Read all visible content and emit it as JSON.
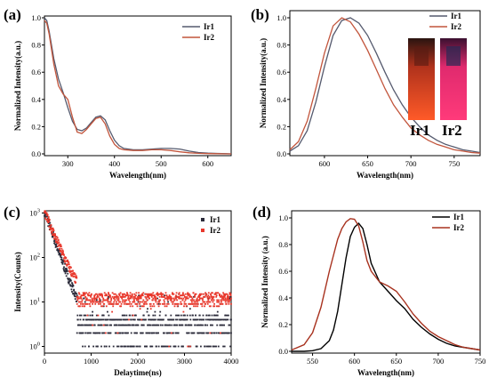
{
  "colors": {
    "ir1": "#555a6e",
    "ir2": "#c2553c",
    "ir1_d": "#000000",
    "ir2_d": "#a8321f",
    "red_scatter": "#e8382c",
    "dark_scatter": "#2b2b3a"
  },
  "chart_data": [
    {
      "panel": "(a)",
      "type": "line",
      "xlabel": "Wavelength(nm)",
      "ylabel": "Normalized Intensity(a.u.)",
      "xlim": [
        250,
        650
      ],
      "ylim": [
        0,
        1.0
      ],
      "xticks": [
        "300",
        "400",
        "500",
        "600"
      ],
      "yticks": [
        "0.0",
        "0.2",
        "0.4",
        "0.6",
        "0.8",
        "1.0"
      ],
      "series": [
        {
          "name": "Ir1",
          "x": [
            250,
            255,
            260,
            270,
            280,
            290,
            300,
            310,
            320,
            330,
            340,
            350,
            360,
            370,
            380,
            390,
            400,
            410,
            420,
            440,
            460,
            480,
            500,
            520,
            540,
            560,
            580,
            600,
            620,
            640,
            650
          ],
          "y": [
            1.0,
            0.98,
            0.9,
            0.7,
            0.55,
            0.45,
            0.34,
            0.24,
            0.18,
            0.17,
            0.19,
            0.23,
            0.27,
            0.28,
            0.25,
            0.17,
            0.1,
            0.06,
            0.04,
            0.03,
            0.03,
            0.035,
            0.04,
            0.04,
            0.035,
            0.02,
            0.01,
            0.005,
            0.003,
            0.001,
            0.0
          ]
        },
        {
          "name": "Ir2",
          "x": [
            250,
            255,
            260,
            270,
            280,
            290,
            300,
            310,
            320,
            330,
            340,
            350,
            360,
            370,
            380,
            390,
            400,
            410,
            420,
            440,
            460,
            480,
            500,
            520,
            540,
            560,
            580,
            600,
            620,
            640,
            650
          ],
          "y": [
            0.98,
            0.96,
            0.88,
            0.66,
            0.5,
            0.44,
            0.4,
            0.27,
            0.16,
            0.15,
            0.18,
            0.22,
            0.26,
            0.27,
            0.22,
            0.13,
            0.07,
            0.04,
            0.03,
            0.025,
            0.025,
            0.03,
            0.03,
            0.025,
            0.015,
            0.008,
            0.004,
            0.002,
            0.001,
            0.0,
            0.0
          ]
        }
      ]
    },
    {
      "panel": "(b)",
      "type": "line",
      "xlabel": "Wavelength(nm)",
      "ylabel": "Normalized Intensity(a.u.)",
      "xlim": [
        560,
        780
      ],
      "ylim": [
        0,
        1.0
      ],
      "xticks": [
        "600",
        "650",
        "700",
        "750"
      ],
      "yticks": [
        "0.0",
        "0.2",
        "0.4",
        "0.6",
        "0.8",
        "1.0"
      ],
      "series": [
        {
          "name": "Ir1",
          "x": [
            560,
            570,
            580,
            590,
            600,
            610,
            620,
            630,
            640,
            650,
            660,
            670,
            680,
            690,
            700,
            710,
            720,
            730,
            740,
            750,
            760,
            770,
            780
          ],
          "y": [
            0.02,
            0.06,
            0.17,
            0.38,
            0.64,
            0.87,
            0.98,
            1.0,
            0.96,
            0.87,
            0.74,
            0.6,
            0.47,
            0.36,
            0.27,
            0.2,
            0.14,
            0.1,
            0.07,
            0.05,
            0.03,
            0.02,
            0.01
          ]
        },
        {
          "name": "Ir2",
          "x": [
            560,
            570,
            580,
            590,
            600,
            610,
            620,
            630,
            640,
            650,
            660,
            670,
            680,
            690,
            700,
            710,
            720,
            730,
            740,
            750,
            760,
            770,
            780
          ],
          "y": [
            0.03,
            0.09,
            0.24,
            0.48,
            0.74,
            0.94,
            1.0,
            0.97,
            0.88,
            0.76,
            0.62,
            0.48,
            0.36,
            0.27,
            0.19,
            0.14,
            0.1,
            0.07,
            0.05,
            0.03,
            0.02,
            0.01,
            0.005
          ]
        }
      ],
      "photo_labels": [
        "Ir1",
        "Ir2"
      ]
    },
    {
      "panel": "(c)",
      "type": "scatter",
      "xlabel": "Delaytime(ns)",
      "ylabel": "Intensity(Counts)",
      "xlim": [
        0,
        4000
      ],
      "ylim_log10": [
        -0.15,
        3.05
      ],
      "scale": "log",
      "xticks": [
        "0",
        "1000",
        "2000",
        "3000",
        "4000"
      ],
      "yticks": [
        "10^0",
        "10^1",
        "10^2",
        "10^3"
      ],
      "series": [
        {
          "name": "Ir1",
          "decay_tau_ns": 145,
          "initial_counts": 1100,
          "floor_counts": 3
        },
        {
          "name": "Ir2",
          "decay_tau_ns": 175,
          "initial_counts": 1050,
          "floor_counts": 9
        }
      ]
    },
    {
      "panel": "(d)",
      "type": "line",
      "xlabel": "Wavelength(nm)",
      "ylabel": "Normalized Intensity (a.u.)",
      "xlim": [
        525,
        750
      ],
      "ylim": [
        0,
        1.0
      ],
      "xticks": [
        "550",
        "600",
        "650",
        "700",
        "750"
      ],
      "yticks": [
        "0.0",
        "0.2",
        "0.4",
        "0.6",
        "0.8",
        "1.0"
      ],
      "series": [
        {
          "name": "Ir1",
          "x": [
            525,
            540,
            550,
            560,
            570,
            575,
            580,
            585,
            590,
            595,
            600,
            605,
            610,
            615,
            620,
            630,
            640,
            650,
            660,
            670,
            680,
            690,
            700,
            710,
            720,
            730,
            740,
            750
          ],
          "y": [
            0.0,
            0.0,
            0.005,
            0.02,
            0.08,
            0.16,
            0.3,
            0.5,
            0.7,
            0.86,
            0.93,
            0.96,
            0.92,
            0.8,
            0.66,
            0.52,
            0.45,
            0.38,
            0.32,
            0.24,
            0.18,
            0.13,
            0.09,
            0.06,
            0.04,
            0.03,
            0.02,
            0.01
          ]
        },
        {
          "name": "Ir2",
          "x": [
            525,
            540,
            550,
            560,
            570,
            575,
            580,
            585,
            590,
            595,
            600,
            605,
            610,
            615,
            620,
            630,
            640,
            650,
            660,
            670,
            680,
            690,
            700,
            710,
            720,
            730,
            740,
            750
          ],
          "y": [
            0.01,
            0.05,
            0.14,
            0.33,
            0.6,
            0.72,
            0.84,
            0.92,
            0.97,
            0.995,
            0.99,
            0.94,
            0.82,
            0.68,
            0.6,
            0.52,
            0.49,
            0.45,
            0.37,
            0.28,
            0.21,
            0.15,
            0.11,
            0.08,
            0.05,
            0.03,
            0.02,
            0.01
          ]
        }
      ]
    }
  ]
}
